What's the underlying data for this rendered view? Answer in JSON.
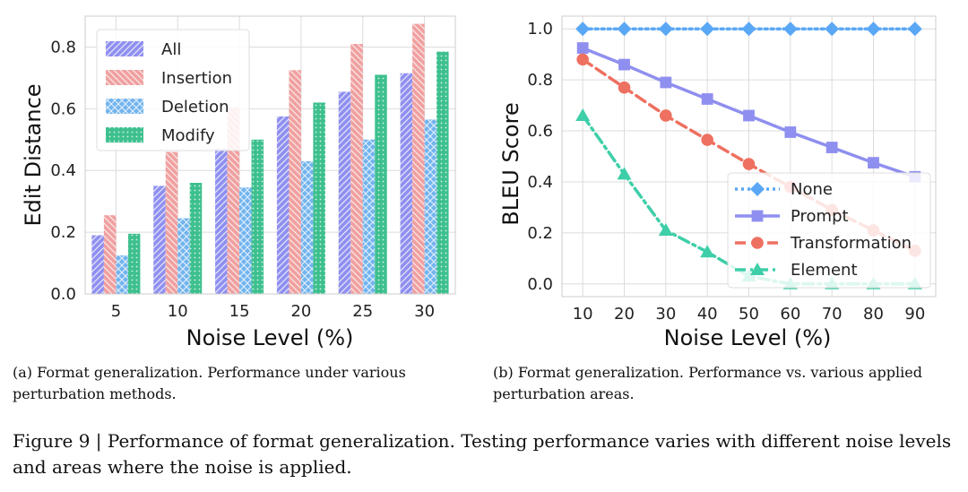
{
  "chart_data": [
    {
      "type": "bar",
      "panel": "a",
      "categories": [
        "5",
        "10",
        "15",
        "20",
        "25",
        "30"
      ],
      "series": [
        {
          "name": "All",
          "color": "#8f8ff0",
          "pattern": "diagonal",
          "values": [
            0.19,
            0.35,
            0.47,
            0.575,
            0.655,
            0.715
          ]
        },
        {
          "name": "Insertion",
          "color": "#f0a0a0",
          "pattern": "back-diagonal",
          "values": [
            0.255,
            0.46,
            0.605,
            0.725,
            0.81,
            0.875
          ]
        },
        {
          "name": "Deletion",
          "color": "#72b4ee",
          "pattern": "crosshatch",
          "values": [
            0.125,
            0.245,
            0.345,
            0.43,
            0.5,
            0.565
          ]
        },
        {
          "name": "Modify",
          "color": "#3ec08e",
          "pattern": "dots",
          "values": [
            0.195,
            0.36,
            0.5,
            0.62,
            0.71,
            0.785
          ]
        }
      ],
      "xlabel": "Noise Level (%)",
      "ylabel": "Edit Distance",
      "ylim": [
        0,
        0.9
      ],
      "yticks": [
        "0.0",
        "0.2",
        "0.4",
        "0.6",
        "0.8"
      ],
      "ytick_values": [
        0,
        0.2,
        0.4,
        0.6,
        0.8
      ],
      "grid": true,
      "legend_position": "top-left"
    },
    {
      "type": "line",
      "panel": "b",
      "x": [
        10,
        20,
        30,
        40,
        50,
        60,
        70,
        80,
        90
      ],
      "xticks": [
        "10",
        "20",
        "30",
        "40",
        "50",
        "60",
        "70",
        "80",
        "90"
      ],
      "series": [
        {
          "name": "None",
          "color": "#5aa8f5",
          "marker": "diamond",
          "dash": "dotted",
          "values": [
            1.0,
            1.0,
            1.0,
            1.0,
            1.0,
            1.0,
            1.0,
            1.0,
            1.0
          ]
        },
        {
          "name": "Prompt",
          "color": "#8f8ff0",
          "marker": "square",
          "dash": "solid",
          "values": [
            0.925,
            0.86,
            0.79,
            0.725,
            0.66,
            0.595,
            0.535,
            0.475,
            0.42
          ]
        },
        {
          "name": "Transformation",
          "color": "#ee7060",
          "marker": "circle",
          "dash": "dashed",
          "values": [
            0.88,
            0.77,
            0.66,
            0.565,
            0.47,
            0.38,
            0.29,
            0.21,
            0.13
          ]
        },
        {
          "name": "Element",
          "color": "#3ecfa8",
          "marker": "triangle",
          "dash": "dashdot",
          "values": [
            0.66,
            0.43,
            0.21,
            0.125,
            0.03,
            0.0,
            0.0,
            0.0,
            0.0
          ]
        }
      ],
      "xlabel": "Noise Level (%)",
      "ylabel": "BLEU Score",
      "xlim": [
        5,
        95
      ],
      "ylim": [
        -0.05,
        1.05
      ],
      "yticks": [
        "0.0",
        "0.2",
        "0.4",
        "0.6",
        "0.8",
        "1.0"
      ],
      "ytick_values": [
        0,
        0.2,
        0.4,
        0.6,
        0.8,
        1.0
      ],
      "grid": true,
      "legend_position": "lower-right"
    }
  ],
  "captions": {
    "a": "(a) Format generalization. Performance under various perturbation methods.",
    "b": "(b) Format generalization. Performance vs. various applied perturbation areas.",
    "figure": "Figure 9 | Performance of format generalization. Testing performance varies with different noise levels and areas where the noise is applied."
  }
}
